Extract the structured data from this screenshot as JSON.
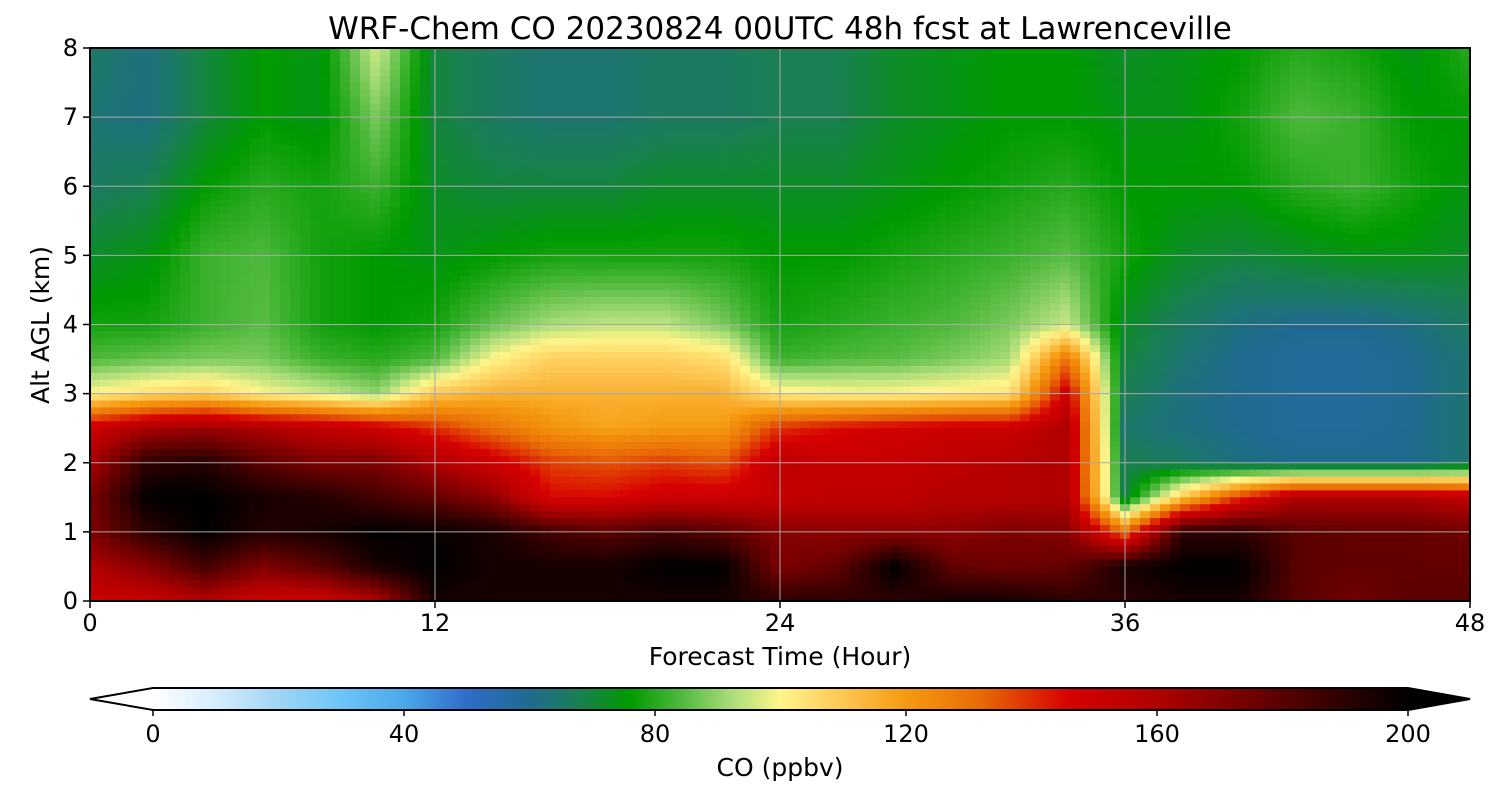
{
  "chart_data": {
    "type": "heatmap",
    "title": "WRF-Chem CO  20230824 00UTC 48h fcst at Lawrenceville",
    "xlabel": "Forecast Time (Hour)",
    "ylabel": "Alt AGL (km)",
    "xlim": [
      0,
      48
    ],
    "ylim": [
      0,
      8
    ],
    "xticks": [
      "0",
      "12",
      "24",
      "36",
      "48"
    ],
    "yticks": [
      "0",
      "1",
      "2",
      "3",
      "4",
      "5",
      "6",
      "7",
      "8"
    ],
    "grid": true,
    "colorbar": {
      "label": "CO  (ppbv)",
      "min": 0,
      "max": 200,
      "ticks": [
        "0",
        "40",
        "80",
        "120",
        "160",
        "200"
      ],
      "extend": "both",
      "stops": [
        {
          "value": 0,
          "color": "#ffffff"
        },
        {
          "value": 10,
          "color": "#d6ecfb"
        },
        {
          "value": 20,
          "color": "#9fd5f5"
        },
        {
          "value": 30,
          "color": "#6cc5f6"
        },
        {
          "value": 40,
          "color": "#4aa8ea"
        },
        {
          "value": 50,
          "color": "#2f6cc9"
        },
        {
          "value": 60,
          "color": "#1f6b8f"
        },
        {
          "value": 68,
          "color": "#1a7f52"
        },
        {
          "value": 76,
          "color": "#009a00"
        },
        {
          "value": 84,
          "color": "#4eb83c"
        },
        {
          "value": 92,
          "color": "#a8dc78"
        },
        {
          "value": 100,
          "color": "#fff58a"
        },
        {
          "value": 108,
          "color": "#ffd060"
        },
        {
          "value": 120,
          "color": "#f59a10"
        },
        {
          "value": 132,
          "color": "#e86a05"
        },
        {
          "value": 146,
          "color": "#d60000"
        },
        {
          "value": 160,
          "color": "#b00000"
        },
        {
          "value": 175,
          "color": "#700000"
        },
        {
          "value": 188,
          "color": "#350000"
        },
        {
          "value": 200,
          "color": "#000000"
        }
      ]
    },
    "x_hours": [
      0,
      2,
      4,
      6,
      8,
      10,
      12,
      14,
      16,
      18,
      20,
      22,
      24,
      26,
      28,
      30,
      32,
      34,
      36,
      38,
      40,
      42,
      44,
      46,
      48
    ],
    "heights_km": [
      0,
      0.5,
      1,
      1.5,
      2,
      2.5,
      3,
      3.5,
      4,
      5,
      6,
      7,
      8
    ],
    "co_ppbv": [
      [
        150,
        152,
        158,
        150,
        150,
        160,
        195,
        195,
        195,
        195,
        195,
        195,
        190,
        190,
        190,
        195,
        195,
        190,
        190,
        195,
        195,
        180,
        175,
        180,
        180
      ],
      [
        160,
        170,
        185,
        172,
        180,
        195,
        200,
        195,
        195,
        195,
        200,
        200,
        172,
        178,
        200,
        178,
        175,
        178,
        195,
        200,
        200,
        180,
        178,
        178,
        178
      ],
      [
        172,
        190,
        200,
        192,
        195,
        200,
        198,
        195,
        185,
        180,
        185,
        180,
        170,
        168,
        168,
        168,
        172,
        170,
        130,
        190,
        190,
        180,
        178,
        178,
        175
      ],
      [
        172,
        200,
        200,
        195,
        192,
        185,
        178,
        168,
        145,
        145,
        150,
        150,
        152,
        155,
        155,
        158,
        158,
        160,
        70,
        110,
        140,
        160,
        160,
        160,
        155
      ],
      [
        162,
        190,
        192,
        180,
        172,
        172,
        160,
        150,
        138,
        135,
        138,
        135,
        155,
        152,
        152,
        155,
        158,
        160,
        68,
        66,
        62,
        60,
        60,
        60,
        64
      ],
      [
        150,
        162,
        165,
        160,
        155,
        150,
        140,
        130,
        122,
        118,
        120,
        120,
        140,
        145,
        148,
        150,
        150,
        160,
        65,
        62,
        60,
        58,
        58,
        60,
        64
      ],
      [
        100,
        105,
        108,
        100,
        96,
        90,
        110,
        115,
        115,
        115,
        115,
        115,
        102,
        100,
        100,
        102,
        104,
        150,
        68,
        62,
        60,
        58,
        58,
        60,
        64
      ],
      [
        84,
        86,
        88,
        88,
        82,
        80,
        84,
        100,
        108,
        108,
        108,
        105,
        82,
        84,
        85,
        88,
        92,
        130,
        70,
        64,
        60,
        58,
        58,
        60,
        64
      ],
      [
        78,
        78,
        82,
        85,
        78,
        76,
        78,
        86,
        92,
        94,
        94,
        88,
        78,
        80,
        82,
        84,
        88,
        95,
        72,
        66,
        62,
        60,
        60,
        62,
        66
      ],
      [
        72,
        74,
        82,
        84,
        78,
        76,
        74,
        76,
        78,
        78,
        78,
        78,
        76,
        76,
        78,
        80,
        82,
        85,
        78,
        72,
        70,
        72,
        74,
        74,
        72
      ],
      [
        66,
        68,
        76,
        80,
        78,
        82,
        72,
        70,
        70,
        70,
        72,
        72,
        72,
        72,
        74,
        76,
        78,
        80,
        76,
        76,
        76,
        80,
        82,
        78,
        74
      ],
      [
        64,
        62,
        70,
        76,
        74,
        88,
        70,
        66,
        64,
        64,
        66,
        66,
        68,
        68,
        72,
        74,
        76,
        76,
        74,
        74,
        78,
        84,
        82,
        76,
        76
      ],
      [
        66,
        62,
        70,
        76,
        74,
        96,
        70,
        66,
        64,
        64,
        66,
        66,
        68,
        68,
        72,
        74,
        76,
        76,
        72,
        74,
        76,
        80,
        78,
        74,
        80
      ]
    ]
  }
}
